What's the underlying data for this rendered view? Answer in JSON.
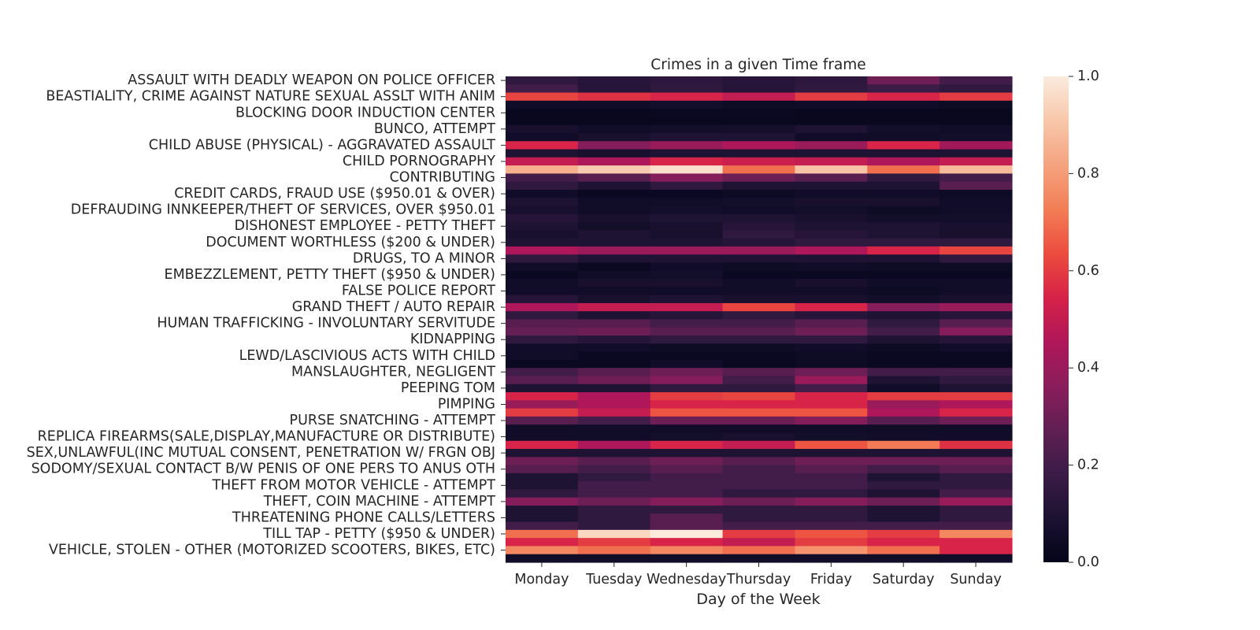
{
  "chart_data": {
    "type": "heatmap",
    "title": "Crimes in a given Time frame",
    "xlabel": "Day of the Week",
    "ylabel": "",
    "x": [
      "Monday",
      "Tuesday",
      "Wednesday",
      "Thursday",
      "Friday",
      "Saturday",
      "Sunday"
    ],
    "row_count": 60,
    "y_tick_labels": [
      {
        "row": 0,
        "label": "ASSAULT WITH DEADLY WEAPON ON POLICE OFFICER"
      },
      {
        "row": 2,
        "label": "BEASTIALITY, CRIME AGAINST NATURE SEXUAL ASSLT WITH ANIM"
      },
      {
        "row": 4,
        "label": "BLOCKING DOOR INDUCTION CENTER"
      },
      {
        "row": 6,
        "label": "BUNCO, ATTEMPT"
      },
      {
        "row": 8,
        "label": "CHILD ABUSE (PHYSICAL) - AGGRAVATED ASSAULT"
      },
      {
        "row": 10,
        "label": "CHILD PORNOGRAPHY"
      },
      {
        "row": 12,
        "label": "CONTRIBUTING"
      },
      {
        "row": 14,
        "label": "CREDIT CARDS, FRAUD USE ($950.01 & OVER)"
      },
      {
        "row": 16,
        "label": "DEFRAUDING INNKEEPER/THEFT OF SERVICES, OVER $950.01"
      },
      {
        "row": 18,
        "label": "DISHONEST EMPLOYEE - PETTY THEFT"
      },
      {
        "row": 20,
        "label": "DOCUMENT WORTHLESS ($200 & UNDER)"
      },
      {
        "row": 22,
        "label": "DRUGS, TO A MINOR"
      },
      {
        "row": 24,
        "label": "EMBEZZLEMENT, PETTY THEFT ($950 & UNDER)"
      },
      {
        "row": 26,
        "label": "FALSE POLICE REPORT"
      },
      {
        "row": 28,
        "label": "GRAND THEFT / AUTO REPAIR"
      },
      {
        "row": 30,
        "label": "HUMAN TRAFFICKING - INVOLUNTARY SERVITUDE"
      },
      {
        "row": 32,
        "label": "KIDNAPPING"
      },
      {
        "row": 34,
        "label": "LEWD/LASCIVIOUS ACTS WITH CHILD"
      },
      {
        "row": 36,
        "label": "MANSLAUGHTER, NEGLIGENT"
      },
      {
        "row": 38,
        "label": "PEEPING TOM"
      },
      {
        "row": 40,
        "label": "PIMPING"
      },
      {
        "row": 42,
        "label": "PURSE SNATCHING - ATTEMPT"
      },
      {
        "row": 44,
        "label": "REPLICA FIREARMS(SALE,DISPLAY,MANUFACTURE OR DISTRIBUTE)"
      },
      {
        "row": 46,
        "label": "SEX,UNLAWFUL(INC MUTUAL CONSENT, PENETRATION W/ FRGN OBJ"
      },
      {
        "row": 48,
        "label": "SODOMY/SEXUAL CONTACT B/W PENIS OF ONE PERS TO ANUS OTH"
      },
      {
        "row": 50,
        "label": "THEFT FROM MOTOR VEHICLE - ATTEMPT"
      },
      {
        "row": 52,
        "label": "THEFT, COIN MACHINE - ATTEMPT"
      },
      {
        "row": 54,
        "label": "THREATENING PHONE CALLS/LETTERS"
      },
      {
        "row": 56,
        "label": "TILL TAP - PETTY ($950 & UNDER)"
      },
      {
        "row": 58,
        "label": "VEHICLE, STOLEN - OTHER (MOTORIZED SCOOTERS, BIKES, ETC)"
      }
    ],
    "values": [
      [
        0.15,
        0.12,
        0.14,
        0.12,
        0.14,
        0.3,
        0.2
      ],
      [
        0.2,
        0.12,
        0.15,
        0.12,
        0.15,
        0.18,
        0.15
      ],
      [
        0.62,
        0.58,
        0.55,
        0.5,
        0.6,
        0.55,
        0.6
      ],
      [
        0.05,
        0.05,
        0.06,
        0.04,
        0.05,
        0.05,
        0.04
      ],
      [
        0.02,
        0.02,
        0.03,
        0.03,
        0.02,
        0.02,
        0.02
      ],
      [
        0.02,
        0.02,
        0.02,
        0.02,
        0.02,
        0.02,
        0.02
      ],
      [
        0.08,
        0.05,
        0.06,
        0.07,
        0.1,
        0.06,
        0.05
      ],
      [
        0.05,
        0.08,
        0.1,
        0.1,
        0.05,
        0.05,
        0.06
      ],
      [
        0.55,
        0.35,
        0.4,
        0.45,
        0.4,
        0.55,
        0.42
      ],
      [
        0.1,
        0.08,
        0.1,
        0.1,
        0.1,
        0.1,
        0.1
      ],
      [
        0.5,
        0.45,
        0.55,
        0.52,
        0.5,
        0.45,
        0.5
      ],
      [
        0.85,
        0.92,
        0.97,
        0.7,
        0.9,
        0.7,
        0.88
      ],
      [
        0.2,
        0.25,
        0.35,
        0.3,
        0.25,
        0.15,
        0.2
      ],
      [
        0.15,
        0.1,
        0.15,
        0.1,
        0.1,
        0.1,
        0.25
      ],
      [
        0.05,
        0.03,
        0.03,
        0.04,
        0.05,
        0.05,
        0.04
      ],
      [
        0.1,
        0.05,
        0.05,
        0.06,
        0.08,
        0.08,
        0.05
      ],
      [
        0.08,
        0.05,
        0.06,
        0.05,
        0.06,
        0.04,
        0.05
      ],
      [
        0.12,
        0.08,
        0.1,
        0.1,
        0.08,
        0.06,
        0.06
      ],
      [
        0.1,
        0.06,
        0.08,
        0.12,
        0.1,
        0.1,
        0.08
      ],
      [
        0.08,
        0.1,
        0.08,
        0.15,
        0.12,
        0.1,
        0.08
      ],
      [
        0.1,
        0.1,
        0.1,
        0.12,
        0.15,
        0.15,
        0.15
      ],
      [
        0.45,
        0.4,
        0.4,
        0.4,
        0.45,
        0.55,
        0.62
      ],
      [
        0.15,
        0.1,
        0.1,
        0.1,
        0.1,
        0.1,
        0.15
      ],
      [
        0.05,
        0.03,
        0.05,
        0.04,
        0.05,
        0.04,
        0.04
      ],
      [
        0.03,
        0.05,
        0.06,
        0.03,
        0.03,
        0.03,
        0.03
      ],
      [
        0.05,
        0.08,
        0.08,
        0.05,
        0.08,
        0.05,
        0.05
      ],
      [
        0.05,
        0.05,
        0.05,
        0.05,
        0.05,
        0.04,
        0.05
      ],
      [
        0.12,
        0.08,
        0.1,
        0.08,
        0.08,
        0.06,
        0.08
      ],
      [
        0.45,
        0.5,
        0.5,
        0.62,
        0.55,
        0.35,
        0.4
      ],
      [
        0.15,
        0.1,
        0.12,
        0.15,
        0.12,
        0.1,
        0.12
      ],
      [
        0.25,
        0.25,
        0.2,
        0.2,
        0.25,
        0.15,
        0.25
      ],
      [
        0.28,
        0.3,
        0.25,
        0.25,
        0.3,
        0.2,
        0.35
      ],
      [
        0.15,
        0.12,
        0.15,
        0.15,
        0.15,
        0.1,
        0.12
      ],
      [
        0.05,
        0.05,
        0.04,
        0.04,
        0.05,
        0.04,
        0.05
      ],
      [
        0.05,
        0.03,
        0.03,
        0.03,
        0.04,
        0.03,
        0.03
      ],
      [
        0.03,
        0.03,
        0.05,
        0.03,
        0.04,
        0.03,
        0.03
      ],
      [
        0.2,
        0.25,
        0.3,
        0.25,
        0.3,
        0.2,
        0.2
      ],
      [
        0.25,
        0.3,
        0.35,
        0.2,
        0.4,
        0.1,
        0.15
      ],
      [
        0.1,
        0.1,
        0.15,
        0.15,
        0.2,
        0.05,
        0.1
      ],
      [
        0.55,
        0.45,
        0.6,
        0.62,
        0.55,
        0.6,
        0.6
      ],
      [
        0.4,
        0.45,
        0.55,
        0.55,
        0.55,
        0.4,
        0.45
      ],
      [
        0.6,
        0.5,
        0.65,
        0.65,
        0.65,
        0.45,
        0.55
      ],
      [
        0.25,
        0.2,
        0.3,
        0.3,
        0.35,
        0.25,
        0.3
      ],
      [
        0.05,
        0.05,
        0.05,
        0.05,
        0.05,
        0.05,
        0.05
      ],
      [
        0.05,
        0.05,
        0.06,
        0.08,
        0.06,
        0.05,
        0.05
      ],
      [
        0.55,
        0.45,
        0.55,
        0.5,
        0.65,
        0.72,
        0.58
      ],
      [
        0.1,
        0.1,
        0.1,
        0.1,
        0.1,
        0.1,
        0.1
      ],
      [
        0.3,
        0.25,
        0.3,
        0.25,
        0.3,
        0.3,
        0.3
      ],
      [
        0.25,
        0.2,
        0.25,
        0.2,
        0.25,
        0.2,
        0.25
      ],
      [
        0.1,
        0.15,
        0.2,
        0.2,
        0.2,
        0.1,
        0.15
      ],
      [
        0.1,
        0.2,
        0.2,
        0.2,
        0.2,
        0.15,
        0.15
      ],
      [
        0.15,
        0.2,
        0.2,
        0.15,
        0.15,
        0.1,
        0.2
      ],
      [
        0.35,
        0.3,
        0.35,
        0.3,
        0.35,
        0.3,
        0.4
      ],
      [
        0.1,
        0.15,
        0.15,
        0.15,
        0.15,
        0.1,
        0.15
      ],
      [
        0.1,
        0.15,
        0.25,
        0.15,
        0.15,
        0.1,
        0.15
      ],
      [
        0.2,
        0.15,
        0.25,
        0.2,
        0.2,
        0.2,
        0.2
      ],
      [
        0.7,
        0.95,
        1.0,
        0.6,
        0.65,
        0.6,
        0.75
      ],
      [
        0.55,
        0.6,
        0.55,
        0.5,
        0.6,
        0.55,
        0.55
      ],
      [
        0.75,
        0.7,
        0.75,
        0.7,
        0.78,
        0.7,
        0.55
      ],
      [
        0.05,
        0.05,
        0.05,
        0.05,
        0.05,
        0.05,
        0.05
      ]
    ],
    "vmin": 0.0,
    "vmax": 1.0,
    "colormap": "rocket",
    "colormap_stops": [
      "#03051a",
      "#1c1231",
      "#3b1c47",
      "#611f53",
      "#8a1d5b",
      "#b01759",
      "#d62248",
      "#ec4d3e",
      "#f27e56",
      "#f5a37f",
      "#f8c7aa",
      "#faebdd"
    ],
    "colorbar_ticks": [
      "0.0",
      "0.2",
      "0.4",
      "0.6",
      "0.8",
      "1.0"
    ],
    "grid": false,
    "legend": "colorbar-right"
  }
}
